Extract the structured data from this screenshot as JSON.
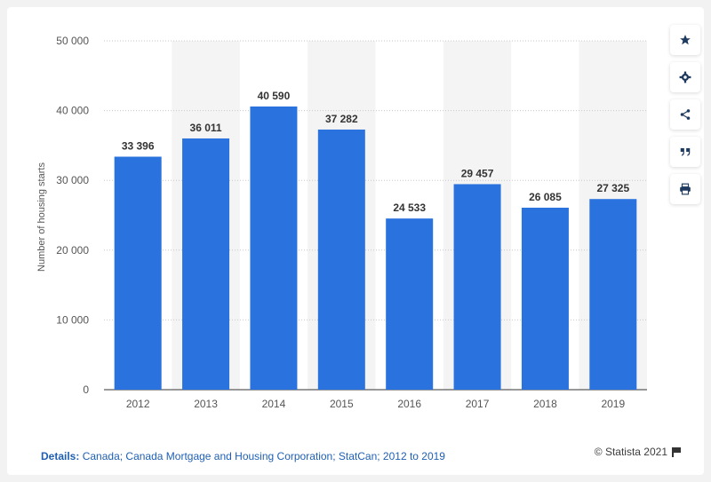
{
  "chart_data": {
    "type": "bar",
    "categories": [
      "2012",
      "2013",
      "2014",
      "2015",
      "2016",
      "2017",
      "2018",
      "2019"
    ],
    "values": [
      33396,
      36011,
      40590,
      37282,
      24533,
      29457,
      26085,
      27325
    ],
    "value_labels": [
      "33 396",
      "36 011",
      "40 590",
      "37 282",
      "24 533",
      "29 457",
      "26 085",
      "27 325"
    ],
    "ylabel": "Number of housing starts",
    "ylim": [
      0,
      50000
    ],
    "yticks": [
      0,
      10000,
      20000,
      30000,
      40000,
      50000
    ],
    "ytick_labels": [
      "0",
      "10 000",
      "20 000",
      "30 000",
      "40 000",
      "50 000"
    ],
    "bar_color": "#2a72de",
    "alt_band_color": "#f4f4f4",
    "grid": true,
    "legend": false
  },
  "footer": {
    "details_label": "Details:",
    "details_text": "Canada; Canada Mortgage and Housing Corporation; StatCan; 2012 to 2019",
    "copyright": "© Statista 2021"
  },
  "sidebar": {
    "icons": [
      "star-icon",
      "gear-icon",
      "share-icon",
      "quote-icon",
      "print-icon"
    ]
  }
}
